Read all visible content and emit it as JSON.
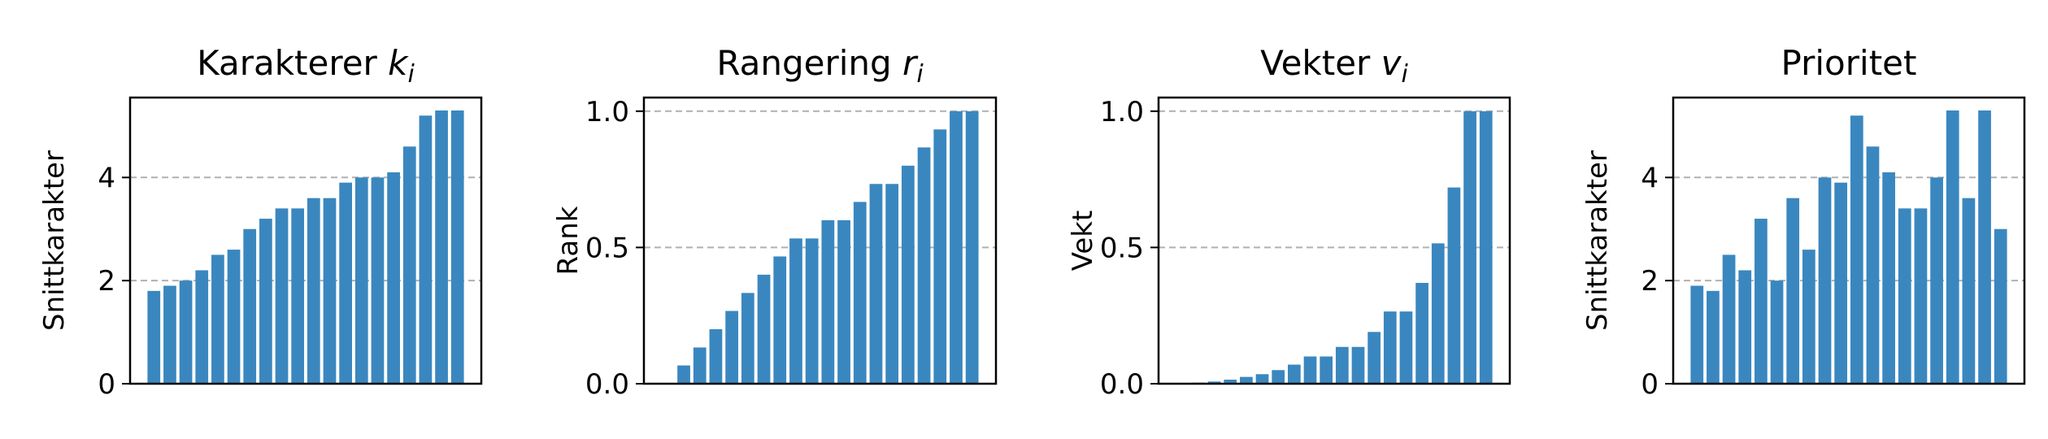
{
  "figure": {
    "bar_color": "#3a87bf",
    "grid_color": "#b0b0b0",
    "grid_style": "dashed",
    "grid_axis": "y"
  },
  "chart_data": [
    {
      "type": "bar",
      "title": "Karakterer",
      "title_var": "k",
      "title_sub": "i",
      "ylabel": "Snittkarakter",
      "ylim": [
        0,
        5.55
      ],
      "yticks": [
        0,
        2,
        4
      ],
      "ytick_labels": [
        "0",
        "2",
        "4"
      ],
      "grid_lines": [
        2,
        4
      ],
      "values": [
        1.8,
        1.9,
        2.0,
        2.2,
        2.5,
        2.6,
        3.0,
        3.2,
        3.4,
        3.4,
        3.6,
        3.6,
        3.9,
        4.0,
        4.0,
        4.1,
        4.6,
        5.2,
        5.3,
        5.3
      ]
    },
    {
      "type": "bar",
      "title": "Rangering",
      "title_var": "r",
      "title_sub": "i",
      "ylabel": "Rank",
      "ylim": [
        0,
        1.05
      ],
      "yticks": [
        0,
        0.5,
        1.0
      ],
      "ytick_labels": [
        "0.0",
        "0.5",
        "1.0"
      ],
      "grid_lines": [
        0.5,
        1.0
      ],
      "values": [
        0.0,
        0.067,
        0.133,
        0.2,
        0.267,
        0.333,
        0.4,
        0.467,
        0.533,
        0.533,
        0.6,
        0.6,
        0.667,
        0.733,
        0.733,
        0.8,
        0.867,
        0.933,
        1.0,
        1.0
      ]
    },
    {
      "type": "bar",
      "title": "Vekter",
      "title_var": "v",
      "title_sub": "i",
      "ylabel": "Vekt",
      "ylim": [
        0,
        1.05
      ],
      "yticks": [
        0,
        0.5,
        1.0
      ],
      "ytick_labels": [
        "0.0",
        "0.5",
        "1.0"
      ],
      "grid_lines": [
        0.5,
        1.0
      ],
      "values": [
        0.0,
        0.004,
        0.008,
        0.015,
        0.025,
        0.035,
        0.05,
        0.07,
        0.1,
        0.1,
        0.135,
        0.135,
        0.19,
        0.265,
        0.265,
        0.37,
        0.515,
        0.72,
        1.0,
        1.0
      ]
    },
    {
      "type": "bar",
      "title": "Prioritet",
      "title_var": "",
      "title_sub": "",
      "ylabel": "Snittkarakter",
      "ylim": [
        0,
        5.55
      ],
      "yticks": [
        0,
        2,
        4
      ],
      "ytick_labels": [
        "0",
        "2",
        "4"
      ],
      "grid_lines": [
        2,
        4
      ],
      "values": [
        1.9,
        1.8,
        2.5,
        2.2,
        3.2,
        2.0,
        3.6,
        2.6,
        4.0,
        3.9,
        5.2,
        4.6,
        4.1,
        3.4,
        3.4,
        4.0,
        5.3,
        3.6,
        5.3,
        3.0
      ]
    }
  ]
}
